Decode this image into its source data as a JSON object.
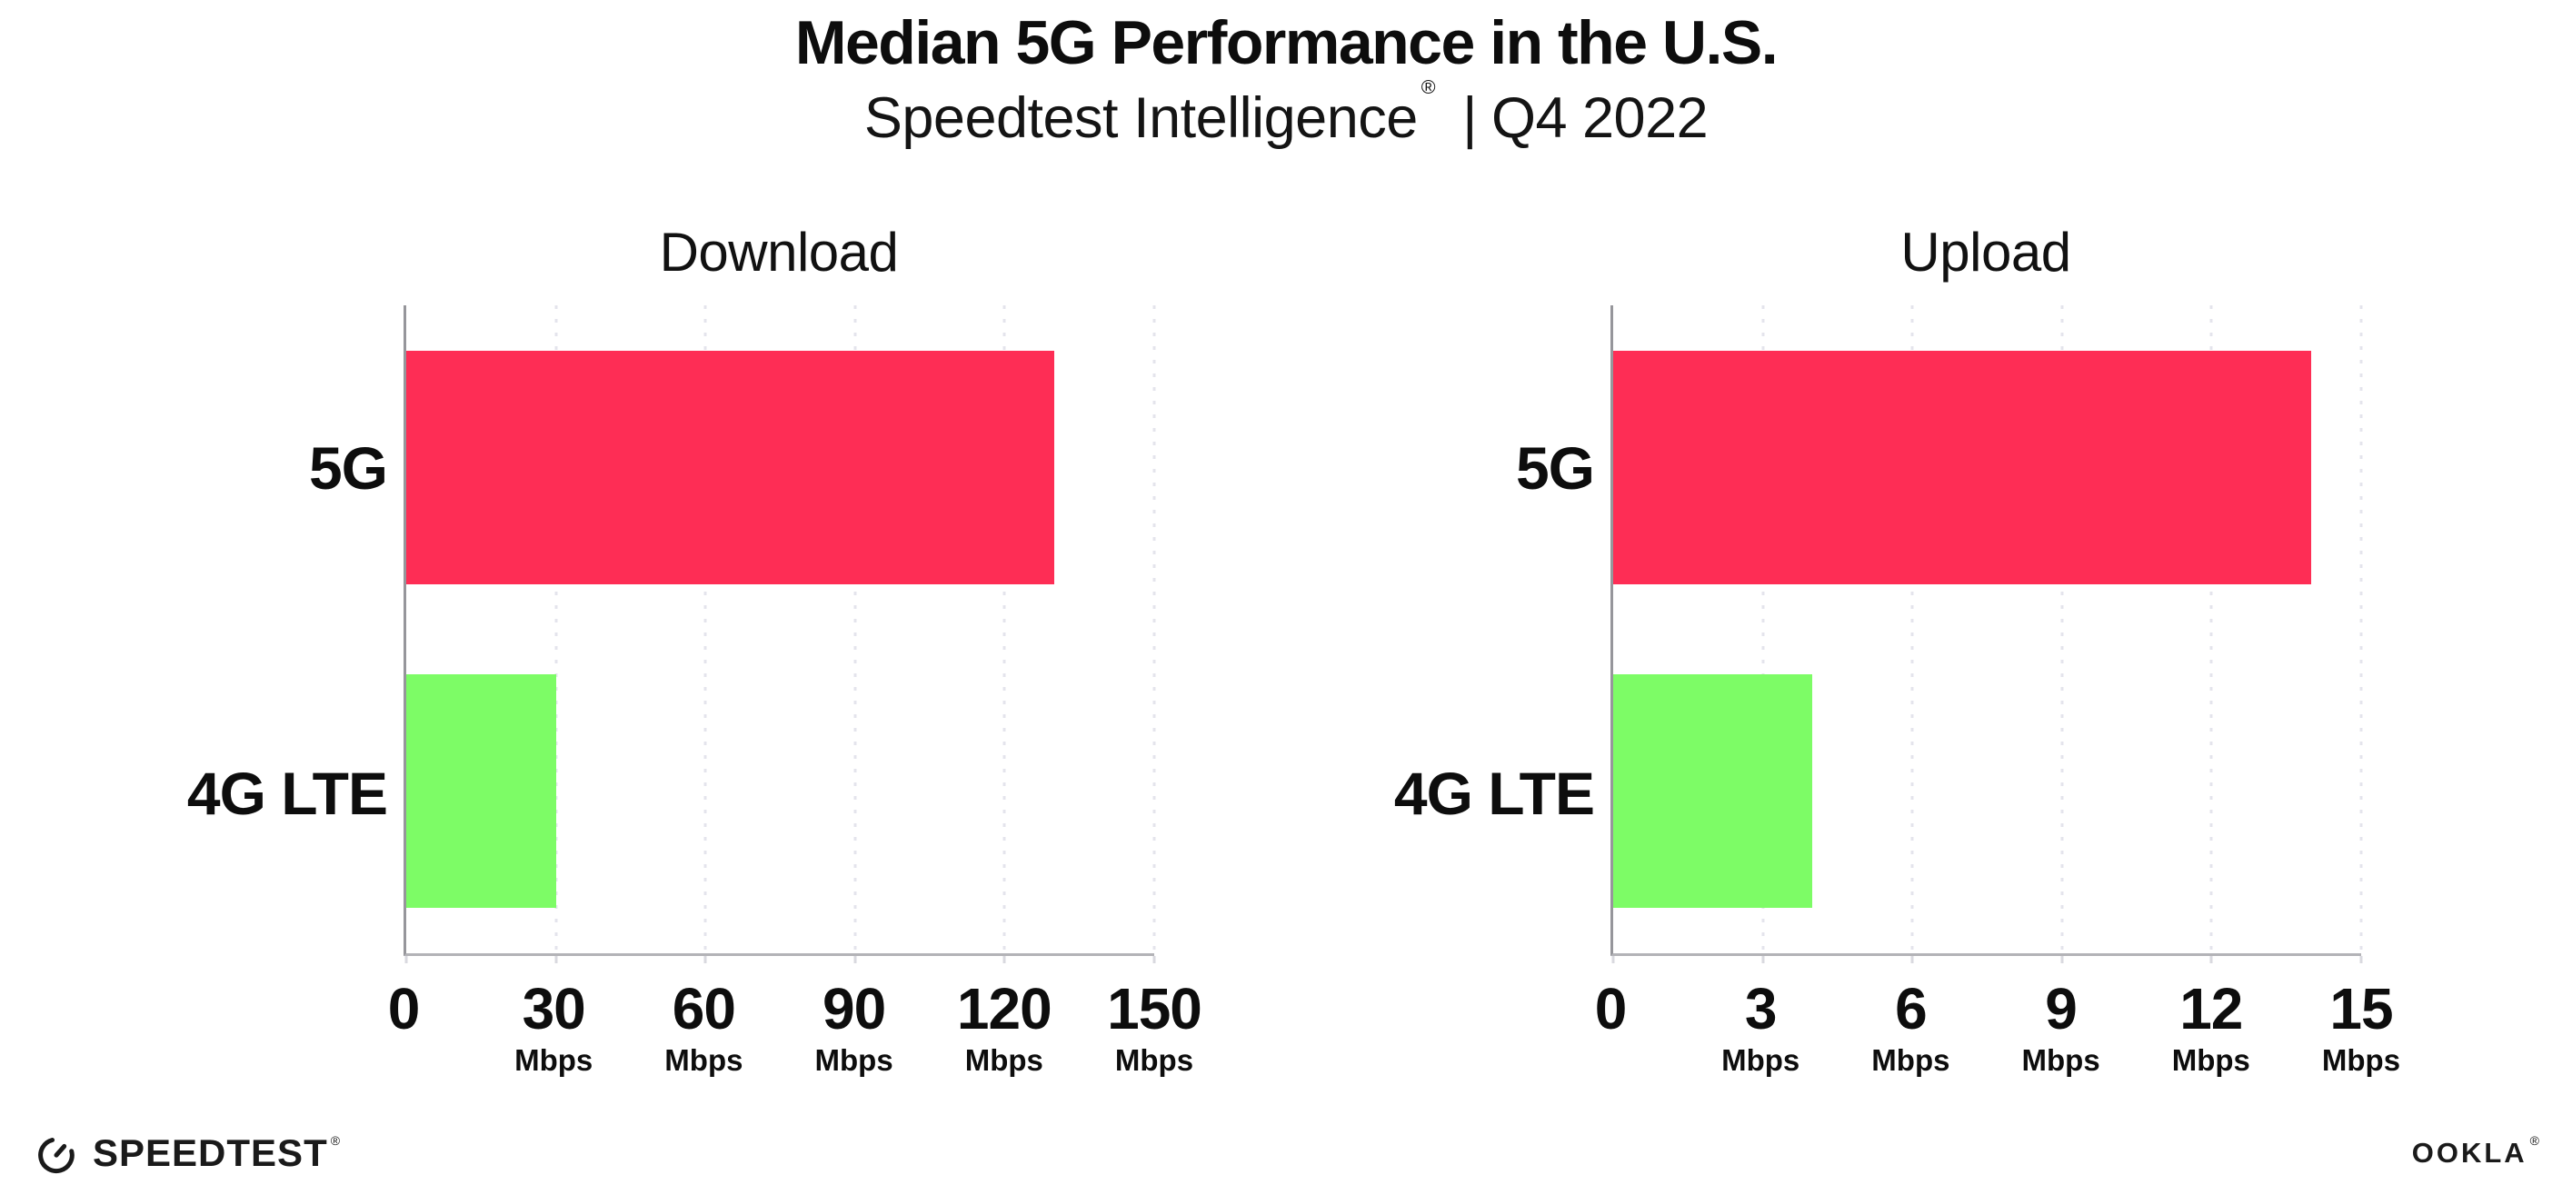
{
  "header": {
    "title": "Median 5G Performance in the U.S.",
    "subtitle": {
      "brand": "Speedtest Intelligence",
      "registered_mark": "®",
      "divider": "|",
      "period": "Q4 2022"
    }
  },
  "chart_data": [
    {
      "type": "bar",
      "orientation": "horizontal",
      "title": "Download",
      "categories": [
        "5G",
        "4G LTE"
      ],
      "values": [
        130,
        30
      ],
      "unit": "Mbps",
      "xlim": [
        0,
        150
      ],
      "xticks": [
        0,
        30,
        60,
        90,
        120,
        150
      ],
      "grid": "vertical-dotted",
      "legend": "none",
      "bar_colors": [
        "#FE2D55",
        "#7DFC66"
      ]
    },
    {
      "type": "bar",
      "orientation": "horizontal",
      "title": "Upload",
      "categories": [
        "5G",
        "4G LTE"
      ],
      "values": [
        14,
        4
      ],
      "unit": "Mbps",
      "xlim": [
        0,
        15
      ],
      "xticks": [
        0,
        3,
        6,
        9,
        12,
        15
      ],
      "grid": "vertical-dotted",
      "legend": "none",
      "bar_colors": [
        "#FE2D55",
        "#7DFC66"
      ]
    }
  ],
  "colors": {
    "bar_5g": "#FE2D55",
    "bar_4g_lte": "#7DFC66",
    "text": "#0D0D0D"
  },
  "footer": {
    "speedtest_label": "SPEEDTEST",
    "speedtest_mark": "®",
    "ookla_label": "OOKLA",
    "ookla_mark": "®"
  }
}
